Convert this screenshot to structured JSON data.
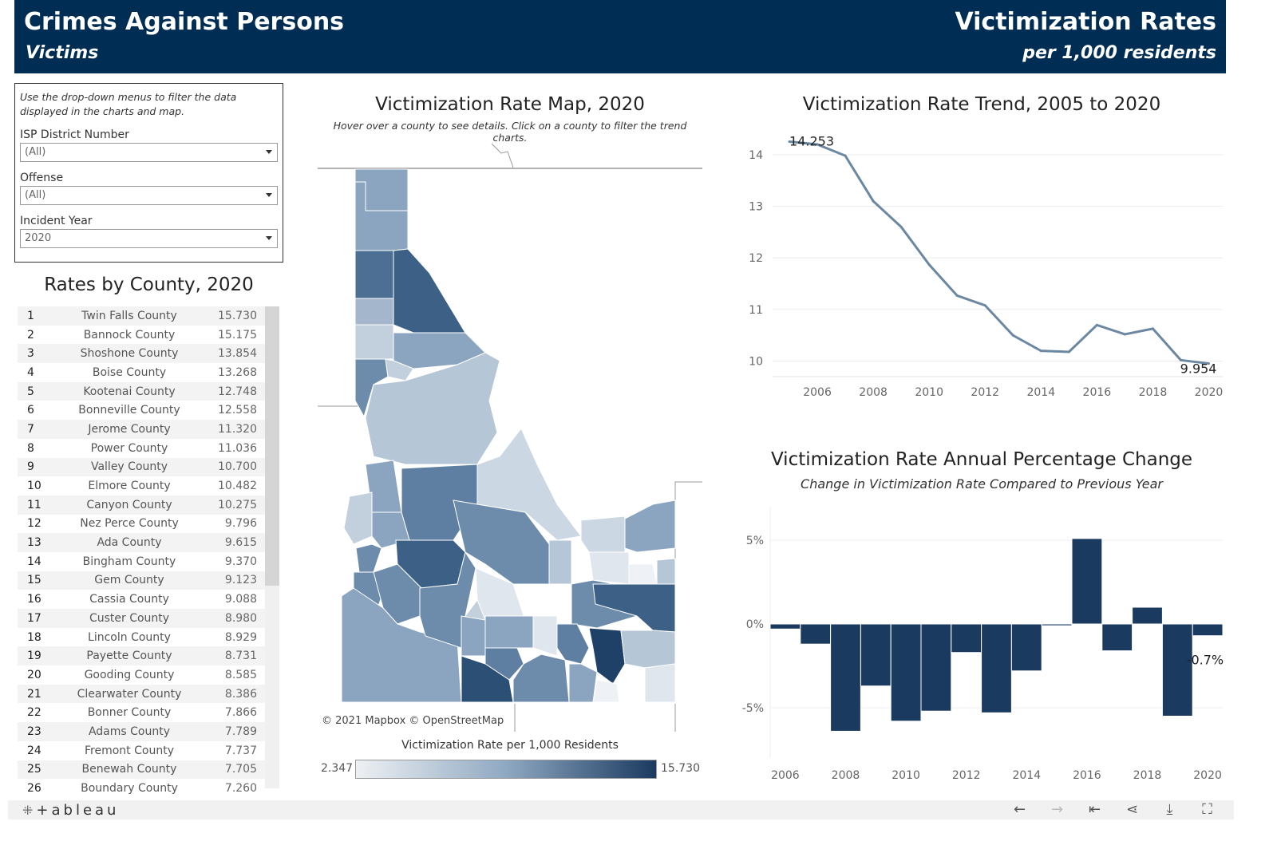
{
  "header": {
    "title": "Crimes Against Persons",
    "subtitle": "Victims",
    "right_title": "Victimization Rates",
    "right_subtitle": "per 1,000 residents"
  },
  "filters": {
    "note": "Use the drop-down menus to filter the data displayed in the charts and map.",
    "district": {
      "label": "ISP District Number",
      "value": "(All)"
    },
    "offense": {
      "label": "Offense",
      "value": "(All)"
    },
    "year": {
      "label": "Incident Year",
      "value": "2020"
    }
  },
  "ranking": {
    "title": "Rates by County, 2020",
    "rows": [
      {
        "rank": "1",
        "county": "Twin Falls County",
        "value": "15.730"
      },
      {
        "rank": "2",
        "county": "Bannock County",
        "value": "15.175"
      },
      {
        "rank": "3",
        "county": "Shoshone County",
        "value": "13.854"
      },
      {
        "rank": "4",
        "county": "Boise County",
        "value": "13.268"
      },
      {
        "rank": "5",
        "county": "Kootenai County",
        "value": "12.748"
      },
      {
        "rank": "6",
        "county": "Bonneville County",
        "value": "12.558"
      },
      {
        "rank": "7",
        "county": "Jerome County",
        "value": "11.320"
      },
      {
        "rank": "8",
        "county": "Power County",
        "value": "11.036"
      },
      {
        "rank": "9",
        "county": "Valley County",
        "value": "10.700"
      },
      {
        "rank": "10",
        "county": "Elmore County",
        "value": "10.482"
      },
      {
        "rank": "11",
        "county": "Canyon County",
        "value": "10.275"
      },
      {
        "rank": "12",
        "county": "Nez Perce County",
        "value": "9.796"
      },
      {
        "rank": "13",
        "county": "Ada County",
        "value": "9.615"
      },
      {
        "rank": "14",
        "county": "Bingham County",
        "value": "9.370"
      },
      {
        "rank": "15",
        "county": "Gem County",
        "value": "9.123"
      },
      {
        "rank": "16",
        "county": "Cassia County",
        "value": "9.088"
      },
      {
        "rank": "17",
        "county": "Custer County",
        "value": "8.980"
      },
      {
        "rank": "18",
        "county": "Lincoln County",
        "value": "8.929"
      },
      {
        "rank": "19",
        "county": "Payette County",
        "value": "8.731"
      },
      {
        "rank": "20",
        "county": "Gooding County",
        "value": "8.585"
      },
      {
        "rank": "21",
        "county": "Clearwater County",
        "value": "8.386"
      },
      {
        "rank": "22",
        "county": "Bonner County",
        "value": "7.866"
      },
      {
        "rank": "23",
        "county": "Adams County",
        "value": "7.789"
      },
      {
        "rank": "24",
        "county": "Fremont County",
        "value": "7.737"
      },
      {
        "rank": "25",
        "county": "Benewah County",
        "value": "7.705"
      },
      {
        "rank": "26",
        "county": "Boundary County",
        "value": "7.260"
      }
    ]
  },
  "map": {
    "title": "Victimization Rate Map, 2020",
    "subtitle": "Hover over a county to see details. Click on a county to filter the trend charts.",
    "credit": "© 2021 Mapbox  © OpenStreetMap",
    "legend_title": "Victimization Rate per 1,000 Residents",
    "legend_min": "2.347",
    "legend_max": "15.730",
    "color_light": "#eef0f3",
    "color_dark": "#1b3a60"
  },
  "trend": {
    "title": "Victimization Rate Trend, 2005 to 2020"
  },
  "pct_change": {
    "title": "Victimization Rate Annual Percentage Change",
    "subtitle": "Change in Victimization Rate Compared to Previous Year"
  },
  "chart_data": [
    {
      "type": "line",
      "title": "Victimization Rate Trend, 2005 to 2020",
      "x": [
        2005,
        2006,
        2007,
        2008,
        2009,
        2010,
        2011,
        2012,
        2013,
        2014,
        2015,
        2016,
        2017,
        2018,
        2019,
        2020
      ],
      "values": [
        14.253,
        14.2,
        13.98,
        13.1,
        12.6,
        11.87,
        11.27,
        11.08,
        10.5,
        10.2,
        10.18,
        10.7,
        10.52,
        10.63,
        10.02,
        9.954
      ],
      "x_ticks": [
        "2006",
        "2008",
        "2010",
        "2012",
        "2014",
        "2016",
        "2018",
        "2020"
      ],
      "y_ticks": [
        "10",
        "11",
        "12",
        "13",
        "14"
      ],
      "ylim": [
        9.7,
        14.4
      ],
      "labels": {
        "first": "14.253",
        "last": "9.954"
      },
      "color": "#6b87a2",
      "grid": true
    },
    {
      "type": "bar",
      "title": "Victimization Rate Annual Percentage Change",
      "x": [
        2006,
        2007,
        2008,
        2009,
        2010,
        2011,
        2012,
        2013,
        2014,
        2015,
        2016,
        2017,
        2018,
        2019,
        2020
      ],
      "values": [
        -0.3,
        -1.2,
        -6.4,
        -3.7,
        -5.8,
        -5.2,
        -1.7,
        -5.3,
        -2.8,
        -0.1,
        5.1,
        -1.6,
        1.0,
        -5.5,
        -0.7
      ],
      "x_ticks": [
        "2006",
        "2008",
        "2010",
        "2012",
        "2014",
        "2016",
        "2018",
        "2020"
      ],
      "y_ticks": [
        "5%",
        "0%",
        "-5%"
      ],
      "ylim": [
        -8,
        7
      ],
      "labels": {
        "last": "-0.7%"
      },
      "color": "#1b3a60",
      "grid": true
    }
  ]
}
